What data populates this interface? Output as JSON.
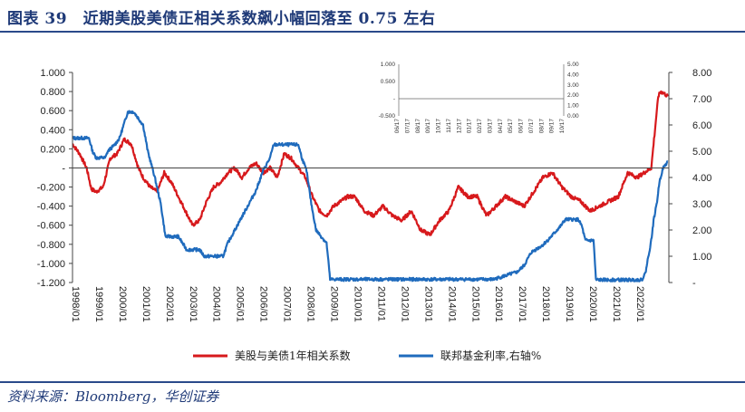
{
  "header": {
    "title": "图表 39　近期美股美债正相关系数飙小幅回落至 0.75 左右"
  },
  "footer": {
    "source": "资料来源：Bloomberg，华创证券"
  },
  "colors": {
    "title": "#1f3a78",
    "correlation": "#d7191c",
    "fed_rate": "#1f6bbd"
  },
  "chart_data": [
    {
      "type": "line",
      "title": "",
      "legend_position": "bottom",
      "x_tick_labels": [
        "1998/01",
        "1999/01",
        "2000/01",
        "2001/01",
        "2002/01",
        "2003/01",
        "2004/01",
        "2005/01",
        "2006/01",
        "2007/01",
        "2008/01",
        "2009/01",
        "2010/01",
        "2011/01",
        "2012/01",
        "2013/01",
        "2014/01",
        "2015/01",
        "2016/01",
        "2017/01",
        "2018/01",
        "2019/01",
        "2020/01",
        "2021/01",
        "2022/01"
      ],
      "xlim": [
        1998.0,
        2023.35
      ],
      "y_left": {
        "ticks": [
          "1.000",
          "0.800",
          "0.600",
          "0.400",
          "0.200",
          "-",
          "-0.200",
          "-0.400",
          "-0.600",
          "-0.800",
          "-1.000",
          "-1.200"
        ],
        "ylim": [
          -1.2,
          1.0
        ]
      },
      "y_right": {
        "ticks": [
          "-",
          "1.00",
          "2.00",
          "3.00",
          "4.00",
          "5.00",
          "6.00",
          "7.00",
          "8.00"
        ],
        "ylim": [
          0,
          8
        ]
      },
      "grid": false,
      "series": [
        {
          "name": "美股与美债1年相关系数",
          "axis": "left",
          "x": [
            1998.0,
            1998.3,
            1998.6,
            1998.8,
            1999.0,
            1999.3,
            1999.6,
            1999.9,
            2000.2,
            2000.5,
            2000.8,
            2001.0,
            2001.3,
            2001.6,
            2001.9,
            2002.2,
            2002.5,
            2002.8,
            2003.1,
            2003.4,
            2003.7,
            2004.0,
            2004.3,
            2004.6,
            2004.9,
            2005.2,
            2005.5,
            2005.8,
            2006.1,
            2006.4,
            2006.7,
            2007.0,
            2007.3,
            2007.6,
            2007.9,
            2008.2,
            2008.5,
            2008.8,
            2009.1,
            2009.4,
            2009.7,
            2010.0,
            2010.4,
            2010.8,
            2011.2,
            2011.6,
            2012.0,
            2012.4,
            2012.8,
            2013.2,
            2013.6,
            2014.0,
            2014.4,
            2014.8,
            2015.2,
            2015.6,
            2016.0,
            2016.4,
            2016.8,
            2017.2,
            2017.6,
            2018.0,
            2018.4,
            2018.8,
            2019.2,
            2019.6,
            2020.0,
            2020.4,
            2020.8,
            2021.2,
            2021.6,
            2022.0,
            2022.3,
            2022.6,
            2022.8,
            2022.9,
            2023.0,
            2023.15,
            2023.3
          ],
          "values": [
            0.25,
            0.15,
            0.0,
            -0.22,
            -0.25,
            -0.2,
            0.1,
            0.15,
            0.3,
            0.25,
            0.0,
            -0.1,
            -0.2,
            -0.25,
            -0.05,
            -0.15,
            -0.3,
            -0.45,
            -0.6,
            -0.55,
            -0.35,
            -0.2,
            -0.15,
            -0.05,
            0.0,
            -0.1,
            0.0,
            0.05,
            -0.05,
            0.0,
            -0.1,
            0.15,
            0.1,
            0.0,
            -0.1,
            -0.3,
            -0.45,
            -0.5,
            -0.4,
            -0.35,
            -0.3,
            -0.3,
            -0.45,
            -0.5,
            -0.4,
            -0.5,
            -0.55,
            -0.45,
            -0.65,
            -0.7,
            -0.55,
            -0.45,
            -0.2,
            -0.3,
            -0.3,
            -0.5,
            -0.4,
            -0.3,
            -0.35,
            -0.4,
            -0.25,
            -0.1,
            -0.05,
            -0.2,
            -0.3,
            -0.35,
            -0.45,
            -0.4,
            -0.35,
            -0.3,
            -0.05,
            -0.1,
            -0.05,
            0.0,
            0.5,
            0.75,
            0.8,
            0.78,
            0.75
          ]
        },
        {
          "name": "联邦基金利率,右轴%",
          "axis": "right",
          "x": [
            1998.0,
            1998.7,
            1998.85,
            1999.0,
            1999.4,
            1999.5,
            1999.8,
            2000.0,
            2000.35,
            2000.6,
            2001.0,
            2001.2,
            2001.5,
            2001.75,
            2001.95,
            2002.5,
            2002.85,
            2003.4,
            2003.6,
            2004.4,
            2004.6,
            2004.9,
            2005.2,
            2005.5,
            2005.8,
            2006.1,
            2006.4,
            2006.55,
            2007.6,
            2007.75,
            2007.95,
            2008.15,
            2008.35,
            2008.8,
            2008.95,
            2015.9,
            2016.9,
            2017.2,
            2017.5,
            2017.95,
            2018.25,
            2018.5,
            2018.75,
            2018.95,
            2019.5,
            2019.65,
            2019.8,
            2020.15,
            2020.25,
            2022.2,
            2022.35,
            2022.45,
            2022.6,
            2022.7,
            2022.85,
            2022.95,
            2023.1,
            2023.3
          ],
          "values": [
            5.5,
            5.5,
            5.0,
            4.75,
            4.75,
            5.0,
            5.25,
            5.5,
            6.5,
            6.5,
            6.0,
            5.0,
            4.0,
            3.0,
            1.75,
            1.75,
            1.25,
            1.25,
            1.0,
            1.0,
            1.5,
            2.0,
            2.5,
            3.0,
            3.5,
            4.25,
            4.75,
            5.25,
            5.25,
            4.75,
            4.25,
            3.0,
            2.0,
            1.5,
            0.12,
            0.12,
            0.4,
            0.65,
            1.15,
            1.4,
            1.65,
            1.9,
            2.15,
            2.4,
            2.4,
            2.15,
            1.6,
            1.6,
            0.1,
            0.1,
            0.35,
            0.85,
            1.6,
            2.35,
            3.1,
            3.85,
            4.35,
            4.6
          ]
        }
      ]
    },
    {
      "type": "line",
      "title": "",
      "x_tick_labels": [
        "06/17",
        "07/17",
        "08/17",
        "09/17",
        "10/17",
        "11/17",
        "12/17",
        "01/17",
        "02/17",
        "03/17",
        "04/17",
        "05/17",
        "06/17",
        "07/17",
        "08/17",
        "09/17",
        "10/17"
      ],
      "y_left": {
        "ticks": [
          "1.000",
          "0.500",
          "-",
          "-0.500"
        ],
        "ylim": [
          -0.5,
          1.0
        ]
      },
      "y_right": {
        "ticks": [
          "5.00",
          "4.00",
          "3.00",
          "2.00",
          "1.00",
          "0.00"
        ],
        "ylim": [
          0,
          5
        ]
      },
      "grid": false,
      "series": [
        {
          "axis": "left",
          "x": [
            0,
            1,
            2,
            3,
            4,
            5,
            6,
            7,
            8,
            9,
            10,
            11,
            12,
            12.5,
            13,
            13.5,
            14,
            14.5,
            15,
            16
          ],
          "values": [
            -0.08,
            -0.1,
            -0.1,
            -0.12,
            -0.12,
            -0.1,
            -0.14,
            -0.12,
            -0.18,
            -0.16,
            -0.2,
            -0.18,
            -0.1,
            0.1,
            0.55,
            0.8,
            0.82,
            0.8,
            0.76,
            0.75
          ]
        },
        {
          "axis": "right",
          "x": [
            0,
            9.8,
            10.2,
            11.4,
            11.6,
            12.4,
            12.6,
            13.4,
            13.6,
            14.6,
            14.8,
            16
          ],
          "values": [
            0.08,
            0.08,
            0.33,
            0.33,
            0.83,
            0.83,
            1.58,
            1.58,
            2.33,
            2.33,
            3.08,
            3.08
          ]
        }
      ]
    }
  ]
}
